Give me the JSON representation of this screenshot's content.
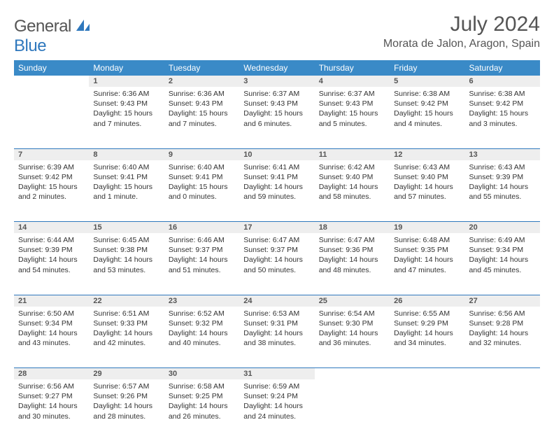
{
  "brand": {
    "part1": "General",
    "part2": "Blue"
  },
  "title": "July 2024",
  "location": "Morata de Jalon, Aragon, Spain",
  "colors": {
    "header_bg": "#3a8ac7",
    "header_text": "#ffffff",
    "daynum_bg": "#eeeeee",
    "rule": "#2f78bd",
    "logo_accent": "#2f78bd",
    "body_text": "#333333"
  },
  "weekdays": [
    "Sunday",
    "Monday",
    "Tuesday",
    "Wednesday",
    "Thursday",
    "Friday",
    "Saturday"
  ],
  "first_weekday_index": 1,
  "days": [
    {
      "n": 1,
      "sunrise": "6:36 AM",
      "sunset": "9:43 PM",
      "daylight": "15 hours and 7 minutes."
    },
    {
      "n": 2,
      "sunrise": "6:36 AM",
      "sunset": "9:43 PM",
      "daylight": "15 hours and 7 minutes."
    },
    {
      "n": 3,
      "sunrise": "6:37 AM",
      "sunset": "9:43 PM",
      "daylight": "15 hours and 6 minutes."
    },
    {
      "n": 4,
      "sunrise": "6:37 AM",
      "sunset": "9:43 PM",
      "daylight": "15 hours and 5 minutes."
    },
    {
      "n": 5,
      "sunrise": "6:38 AM",
      "sunset": "9:42 PM",
      "daylight": "15 hours and 4 minutes."
    },
    {
      "n": 6,
      "sunrise": "6:38 AM",
      "sunset": "9:42 PM",
      "daylight": "15 hours and 3 minutes."
    },
    {
      "n": 7,
      "sunrise": "6:39 AM",
      "sunset": "9:42 PM",
      "daylight": "15 hours and 2 minutes."
    },
    {
      "n": 8,
      "sunrise": "6:40 AM",
      "sunset": "9:41 PM",
      "daylight": "15 hours and 1 minute."
    },
    {
      "n": 9,
      "sunrise": "6:40 AM",
      "sunset": "9:41 PM",
      "daylight": "15 hours and 0 minutes."
    },
    {
      "n": 10,
      "sunrise": "6:41 AM",
      "sunset": "9:41 PM",
      "daylight": "14 hours and 59 minutes."
    },
    {
      "n": 11,
      "sunrise": "6:42 AM",
      "sunset": "9:40 PM",
      "daylight": "14 hours and 58 minutes."
    },
    {
      "n": 12,
      "sunrise": "6:43 AM",
      "sunset": "9:40 PM",
      "daylight": "14 hours and 57 minutes."
    },
    {
      "n": 13,
      "sunrise": "6:43 AM",
      "sunset": "9:39 PM",
      "daylight": "14 hours and 55 minutes."
    },
    {
      "n": 14,
      "sunrise": "6:44 AM",
      "sunset": "9:39 PM",
      "daylight": "14 hours and 54 minutes."
    },
    {
      "n": 15,
      "sunrise": "6:45 AM",
      "sunset": "9:38 PM",
      "daylight": "14 hours and 53 minutes."
    },
    {
      "n": 16,
      "sunrise": "6:46 AM",
      "sunset": "9:37 PM",
      "daylight": "14 hours and 51 minutes."
    },
    {
      "n": 17,
      "sunrise": "6:47 AM",
      "sunset": "9:37 PM",
      "daylight": "14 hours and 50 minutes."
    },
    {
      "n": 18,
      "sunrise": "6:47 AM",
      "sunset": "9:36 PM",
      "daylight": "14 hours and 48 minutes."
    },
    {
      "n": 19,
      "sunrise": "6:48 AM",
      "sunset": "9:35 PM",
      "daylight": "14 hours and 47 minutes."
    },
    {
      "n": 20,
      "sunrise": "6:49 AM",
      "sunset": "9:34 PM",
      "daylight": "14 hours and 45 minutes."
    },
    {
      "n": 21,
      "sunrise": "6:50 AM",
      "sunset": "9:34 PM",
      "daylight": "14 hours and 43 minutes."
    },
    {
      "n": 22,
      "sunrise": "6:51 AM",
      "sunset": "9:33 PM",
      "daylight": "14 hours and 42 minutes."
    },
    {
      "n": 23,
      "sunrise": "6:52 AM",
      "sunset": "9:32 PM",
      "daylight": "14 hours and 40 minutes."
    },
    {
      "n": 24,
      "sunrise": "6:53 AM",
      "sunset": "9:31 PM",
      "daylight": "14 hours and 38 minutes."
    },
    {
      "n": 25,
      "sunrise": "6:54 AM",
      "sunset": "9:30 PM",
      "daylight": "14 hours and 36 minutes."
    },
    {
      "n": 26,
      "sunrise": "6:55 AM",
      "sunset": "9:29 PM",
      "daylight": "14 hours and 34 minutes."
    },
    {
      "n": 27,
      "sunrise": "6:56 AM",
      "sunset": "9:28 PM",
      "daylight": "14 hours and 32 minutes."
    },
    {
      "n": 28,
      "sunrise": "6:56 AM",
      "sunset": "9:27 PM",
      "daylight": "14 hours and 30 minutes."
    },
    {
      "n": 29,
      "sunrise": "6:57 AM",
      "sunset": "9:26 PM",
      "daylight": "14 hours and 28 minutes."
    },
    {
      "n": 30,
      "sunrise": "6:58 AM",
      "sunset": "9:25 PM",
      "daylight": "14 hours and 26 minutes."
    },
    {
      "n": 31,
      "sunrise": "6:59 AM",
      "sunset": "9:24 PM",
      "daylight": "14 hours and 24 minutes."
    }
  ],
  "labels": {
    "sunrise": "Sunrise:",
    "sunset": "Sunset:",
    "daylight": "Daylight:"
  }
}
